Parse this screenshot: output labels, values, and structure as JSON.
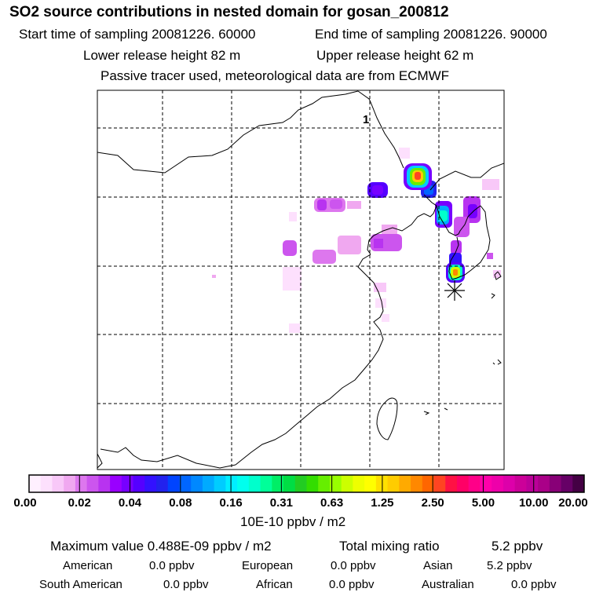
{
  "header": {
    "title": "SO2 source contributions in nested domain for gosan_200812",
    "start_time": "Start time of sampling 20081226. 60000",
    "end_time": "End time of sampling 20081226. 90000",
    "lower_height": "Lower release height   82 m",
    "upper_height": "Upper release height   62 m",
    "tracer_note": "Passive tracer used, meteorological data are from ECMWF"
  },
  "map": {
    "panel_label": "1",
    "receptor_symbol": "asterisk",
    "grid_style": "dashed",
    "coastline_color": "#000000"
  },
  "colorbar": {
    "ticks": [
      "0.00",
      "0.02",
      "0.04",
      "0.08",
      "0.16",
      "0.31",
      "0.63",
      "1.25",
      "2.50",
      "5.00",
      "10.00",
      "20.00"
    ],
    "colors": [
      "#fff0ff",
      "#fde0fd",
      "#f8c8f8",
      "#f0a8f0",
      "#dd77ee",
      "#cc55ee",
      "#b833f0",
      "#9900ff",
      "#7700ff",
      "#5500ff",
      "#3311ff",
      "#2222ee",
      "#0044ff",
      "#0066ff",
      "#0088ff",
      "#00aaff",
      "#00ccff",
      "#00eeff",
      "#00ffee",
      "#00ffcc",
      "#00ff99",
      "#00ee66",
      "#00dd44",
      "#22cc22",
      "#33dd00",
      "#66ee00",
      "#99ff00",
      "#ccff00",
      "#eeff00",
      "#ffff00",
      "#ffe000",
      "#ffcc00",
      "#ffaa00",
      "#ff8800",
      "#ff6600",
      "#ff4422",
      "#ff1144",
      "#ff0066",
      "#ff0088",
      "#ff00aa",
      "#ee00aa",
      "#dd00aa",
      "#cc0099",
      "#bb0099",
      "#aa0088",
      "#880077",
      "#660066",
      "#440044"
    ],
    "units": "10E-10 ppbv / m2"
  },
  "summary": {
    "maximum": "Maximum value  0.488E-09 ppbv / m2",
    "total_label": "Total mixing ratio",
    "total_value": "5.2 ppbv",
    "regions": [
      {
        "name": "American",
        "value": "0.0 ppbv"
      },
      {
        "name": "European",
        "value": "0.0 ppbv"
      },
      {
        "name": "Asian",
        "value": "5.2 ppbv"
      },
      {
        "name": "South American",
        "value": "0.0 ppbv"
      },
      {
        "name": "African",
        "value": "0.0 ppbv"
      },
      {
        "name": "Australian",
        "value": "0.0 ppbv"
      }
    ]
  }
}
